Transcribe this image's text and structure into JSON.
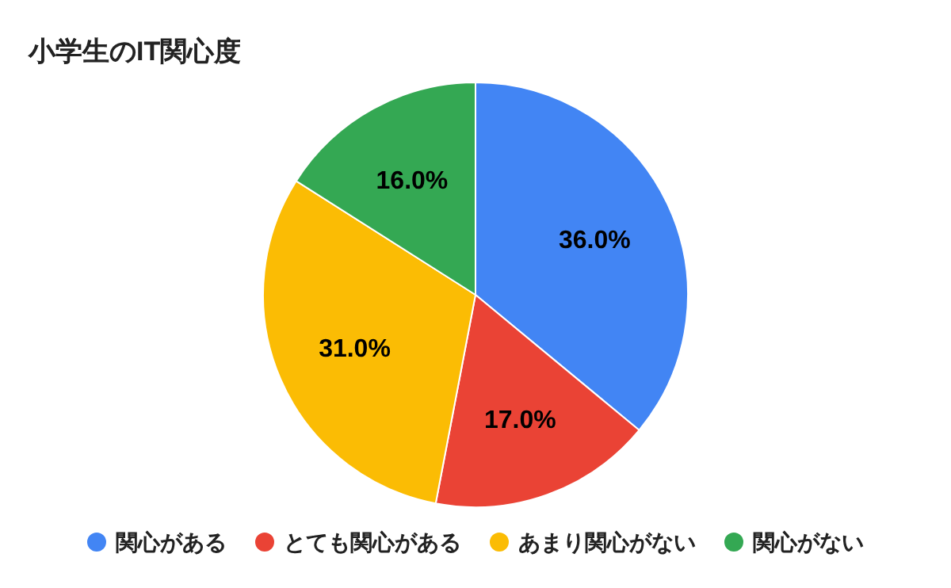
{
  "chart_data": {
    "type": "pie",
    "title": "小学生のIT関心度",
    "categories": [
      "関心がある",
      "とても関心がある",
      "あまり関心がない",
      "関心がない"
    ],
    "values": [
      36,
      17,
      31,
      16
    ],
    "colors": [
      "#4285f4",
      "#ea4335",
      "#fbbc04",
      "#34a853"
    ],
    "value_labels": [
      "36.0%",
      "17.0%",
      "31.0%",
      "16.0%"
    ],
    "legend": "bottom"
  }
}
